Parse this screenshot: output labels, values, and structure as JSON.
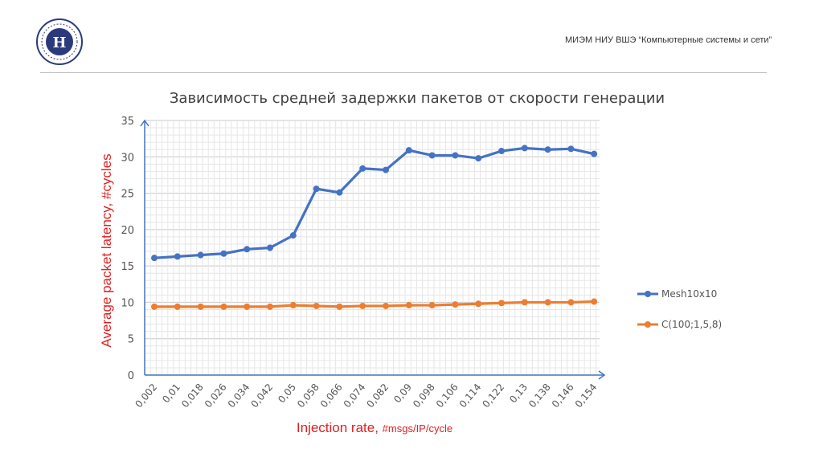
{
  "header": {
    "org_text": "МИЭМ НИУ ВШЭ “Компьютерные системы и сети”"
  },
  "logo": {
    "icon": "hse-logo-icon",
    "color": "#2b3a7a"
  },
  "chart_data": {
    "type": "line",
    "title": "Зависимость средней задержки пакетов от скорости генерации",
    "ylabel": "Average packet latency, #cycles",
    "xlabel_main": "Injection rate, ",
    "xlabel_unit": "#msgs/IP/cycle",
    "categories": [
      "0,002",
      "0,01",
      "0,018",
      "0,026",
      "0,034",
      "0,042",
      "0,05",
      "0,058",
      "0,066",
      "0,074",
      "0,082",
      "0,09",
      "0,098",
      "0,106",
      "0,114",
      "0,122",
      "0,13",
      "0,138",
      "0,146",
      "0,154"
    ],
    "ylim": [
      0,
      35
    ],
    "yticks": [
      "0",
      "5",
      "10",
      "15",
      "20",
      "25",
      "30",
      "35"
    ],
    "grid": true,
    "legend_position": "right",
    "series": [
      {
        "name": "Mesh10x10",
        "color": "#4472c4",
        "values": [
          16.1,
          16.3,
          16.5,
          16.7,
          17.3,
          17.5,
          19.2,
          25.6,
          25.1,
          28.4,
          28.2,
          30.9,
          30.2,
          30.2,
          29.8,
          30.8,
          31.2,
          31.0,
          31.1,
          30.4
        ]
      },
      {
        "name": "C(100;1,5,8)",
        "color": "#ed7d31",
        "values": [
          9.4,
          9.4,
          9.4,
          9.4,
          9.4,
          9.4,
          9.6,
          9.5,
          9.4,
          9.5,
          9.5,
          9.6,
          9.6,
          9.7,
          9.8,
          9.9,
          10.0,
          10.0,
          10.0,
          10.1
        ]
      }
    ],
    "colors": {
      "axis": "#4472c4",
      "ylabel": "#e02020",
      "xlabel": "#e02020",
      "grid": "#d9d9d9",
      "ticks": "#555555"
    }
  }
}
